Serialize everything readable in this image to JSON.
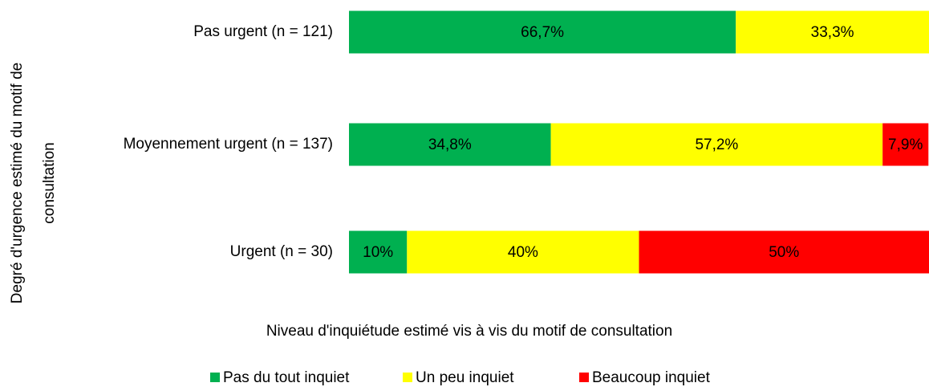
{
  "chart_data": {
    "type": "stacked-bar-horizontal",
    "y_label": [
      "Degré d'urgence estimé du motif de",
      "consultation"
    ],
    "x_label": "Niveau d'inquiétude estimé vis à vis du motif de consultation",
    "categories": [
      "Pas urgent (n = 121)",
      "Moyennement urgent (n = 137)",
      "Urgent (n = 30)"
    ],
    "xlim": [
      0,
      100
    ],
    "legend": "bottom",
    "series": [
      {
        "name": "Pas du tout inquiet",
        "color": "#00b050",
        "values": [
          66.7,
          34.8,
          10
        ],
        "value_labels": [
          "66,7%",
          "34,8%",
          "10%"
        ]
      },
      {
        "name": "Un peu inquiet",
        "color": "#ffff00",
        "values": [
          33.3,
          57.2,
          40
        ],
        "value_labels": [
          "33,3%",
          "57,2%",
          "40%"
        ]
      },
      {
        "name": "Beaucoup inquiet",
        "color": "#ff0000",
        "values": [
          null,
          7.9,
          50
        ],
        "value_labels": [
          null,
          "7,9%",
          "50%"
        ]
      }
    ]
  }
}
